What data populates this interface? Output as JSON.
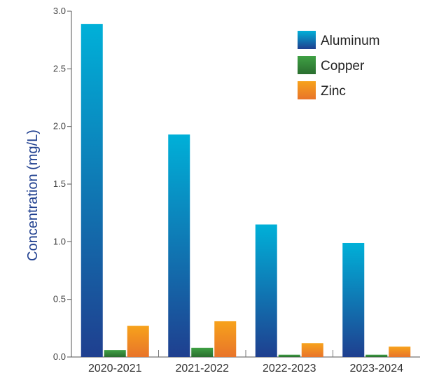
{
  "chart_data": {
    "type": "bar",
    "title": "",
    "xlabel": "",
    "ylabel": "Concentration (mg/L)",
    "ylim": [
      0,
      3.0
    ],
    "yticks": [
      "0.0",
      "0.5",
      "1.0",
      "1.5",
      "2.0",
      "2.5",
      "3.0"
    ],
    "categories": [
      "2020-2021",
      "2021-2022",
      "2022-2023",
      "2023-2024"
    ],
    "series": [
      {
        "name": "Aluminum",
        "values": [
          2.89,
          1.93,
          1.15,
          0.99
        ],
        "color_top": "#00b0d8",
        "color_bottom": "#1f3f8f"
      },
      {
        "name": "Copper",
        "values": [
          0.06,
          0.08,
          0.02,
          0.02
        ],
        "color_top": "#3fa044",
        "color_bottom": "#2a6e2f"
      },
      {
        "name": "Zinc",
        "values": [
          0.27,
          0.31,
          0.12,
          0.09
        ],
        "color_top": "#f7a21b",
        "color_bottom": "#e8742a"
      }
    ],
    "grid": false,
    "legend_position": "top-right"
  }
}
